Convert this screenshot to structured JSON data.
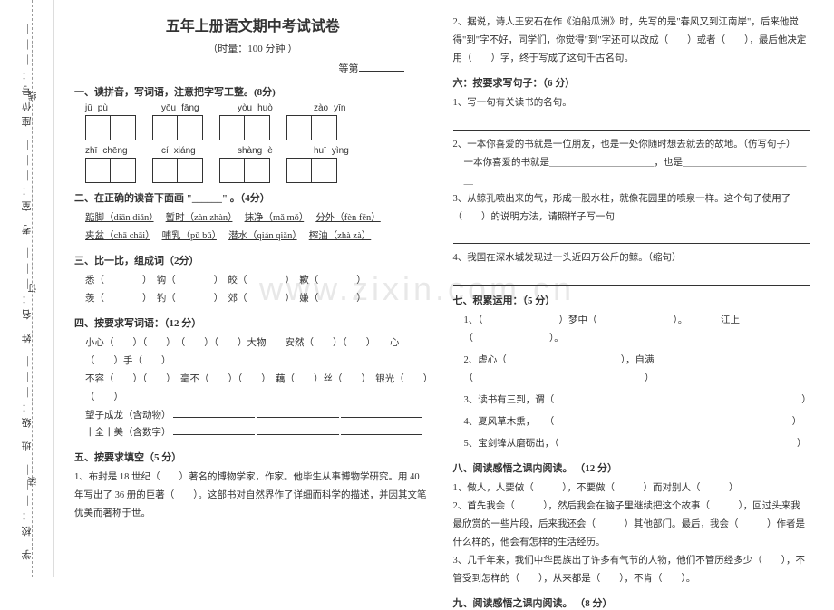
{
  "watermark": "www.zixin.com.cn",
  "binding": {
    "school": "学 校：",
    "class": "班 级：",
    "name": "姓 名：",
    "room": "考 室：",
    "seat": "座位号：",
    "zhuang": "装",
    "ding": "订",
    "xian": "线"
  },
  "header": {
    "title": "五年上册语文期中考试试卷",
    "subtitle": "（时量：100 分钟 ）",
    "score_label": "等第"
  },
  "left": {
    "s1_head": "一、读拼音，写词语，注意把字写工整。(8分)",
    "pinyin_row1": [
      [
        "jū",
        "pù"
      ],
      [
        "yōu",
        "fāng"
      ],
      [
        "yòu",
        "huò"
      ],
      [
        "zào",
        "yīn"
      ]
    ],
    "pinyin_row2": [
      [
        "zhī",
        "chēng"
      ],
      [
        "cí",
        "xiáng"
      ],
      [
        "shàng",
        "è"
      ],
      [
        "huī",
        "yìng"
      ]
    ],
    "s2_head": "二、在正确的读音下面画 \"______\" 。（4分）",
    "s2_line1_a": "踮脚（diān diǎn）",
    "s2_line1_b": "暂时（zàn zhàn）",
    "s2_line1_c": "抹净（mǎ mǒ）",
    "s2_line1_d": "分外（fèn fēn）",
    "s2_line2_a": "夹盆（chā chāi）",
    "s2_line2_b": "哺乳（pǔ bǔ）",
    "s2_line2_c": "潜水（qián qiǎn）",
    "s2_line2_d": "榨油（zhà zà）",
    "s3_head": "三、比一比，组成词（2分）",
    "s3_line1": "悉（　　　　）　钩（　　　　）　皎（　　　　）　歉（　　　　）",
    "s3_line2": "羡（　　　　）　钓（　　　　）　郊（　　　　）　嫌（　　　　）",
    "s4_head": "四、按要求写词语：（12 分）",
    "s4_line1": "小心（　　）（　　）　（　　）（　　）大物　　安然（　　）（　　）　　心（　　）手（　　）",
    "s4_line2": "不容（　　）（　　）　毫不（　　）（　　）　藕（　　）丝（　　）　银光（　　）（　　）",
    "s4_line3": "望子成龙（含动物）",
    "s4_line4": "十全十美（含数字）",
    "s5_head": "五、按要求填空（5 分）",
    "s5_text": "1、布封是 18 世纪（　　）著名的博物学家，作家。他毕生从事博物学研究。用 40 年写出了 36 册的巨著（　　）。这部书对自然界作了详细而科学的描述，并因其文笔优美而著称于世。"
  },
  "right": {
    "r1": "2、据说，诗人王安石在作《泊船瓜洲》时，先写的是\"春风又到江南岸\"，后来他觉得\"到\"字不好，同学们，你觉得\"到\"字还可以改成（　　）或者（　　），最后他决定用（　　）字，终于写成了这句千古名句。",
    "s6_head": "六：按要求写句子：（6 分）",
    "s6_1": "1、写一句有关读书的名句。",
    "s6_2a": "2、一本你喜爱的书就是一位朋友，也是一处你随时想去就去的故地。（仿写句子）",
    "s6_2b": "一本你喜爱的书就是＿＿＿＿＿＿＿＿＿＿＿，也是＿＿＿＿＿＿＿＿＿＿＿＿＿＿",
    "s6_3": "3、从鲸孔喷出来的气，形成一股水柱，就像花园里的喷泉一样。这个句子使用了（　　）的说明方法，请照样子写一句",
    "s6_4": "4、我国在深水城发现过一头近四万公斤的鲸。（缩句）",
    "s7_head": "七、积累运用：（5 分）",
    "s7_1": "1、（　　　　　　　　）梦中（　　　　　　　　）。　　　　江上（　　　　　　　　）。",
    "s7_2": "2、虚心（　　　　　　　　　　　　），自满（　　　　　　　　　　　　　　　　　　）",
    "s7_3": "3、读书有三到，谓（　　　　　　　　　　　　　　　　　　　　　　　　　　）",
    "s7_4": "4、夏风草木熏，　　（　　　　　　　　　　　　　　　　　　　　　　　　　）",
    "s7_5": "5、宝剑锋从磨砺出，（　　　　　　　　　　　　　　　　　　　　　　　　　）",
    "s8_head": "八、阅读感悟之课内阅读。 （12 分）",
    "s8_1": "1、做人，人要做（　　　），不要做（　　　）而对别人（　　　）",
    "s8_2": "2、首先我会（　　　），然后我会在脑子里继续把这个故事（　　　），回过头来我最欣赏的一些片段，后来我还会（　　　）其他部门。最后，我会（　　　）作者是什么样的，他会有怎样的生活经历。",
    "s8_3": "3、几千年来，我们中华民族出了许多有气节的人物，他们不管历经多少（　　），不管受到怎样的（　　），从来都是（　　），不肯（　　）。",
    "s9_head": "九、阅读感悟之课内阅读。 （8 分）"
  }
}
